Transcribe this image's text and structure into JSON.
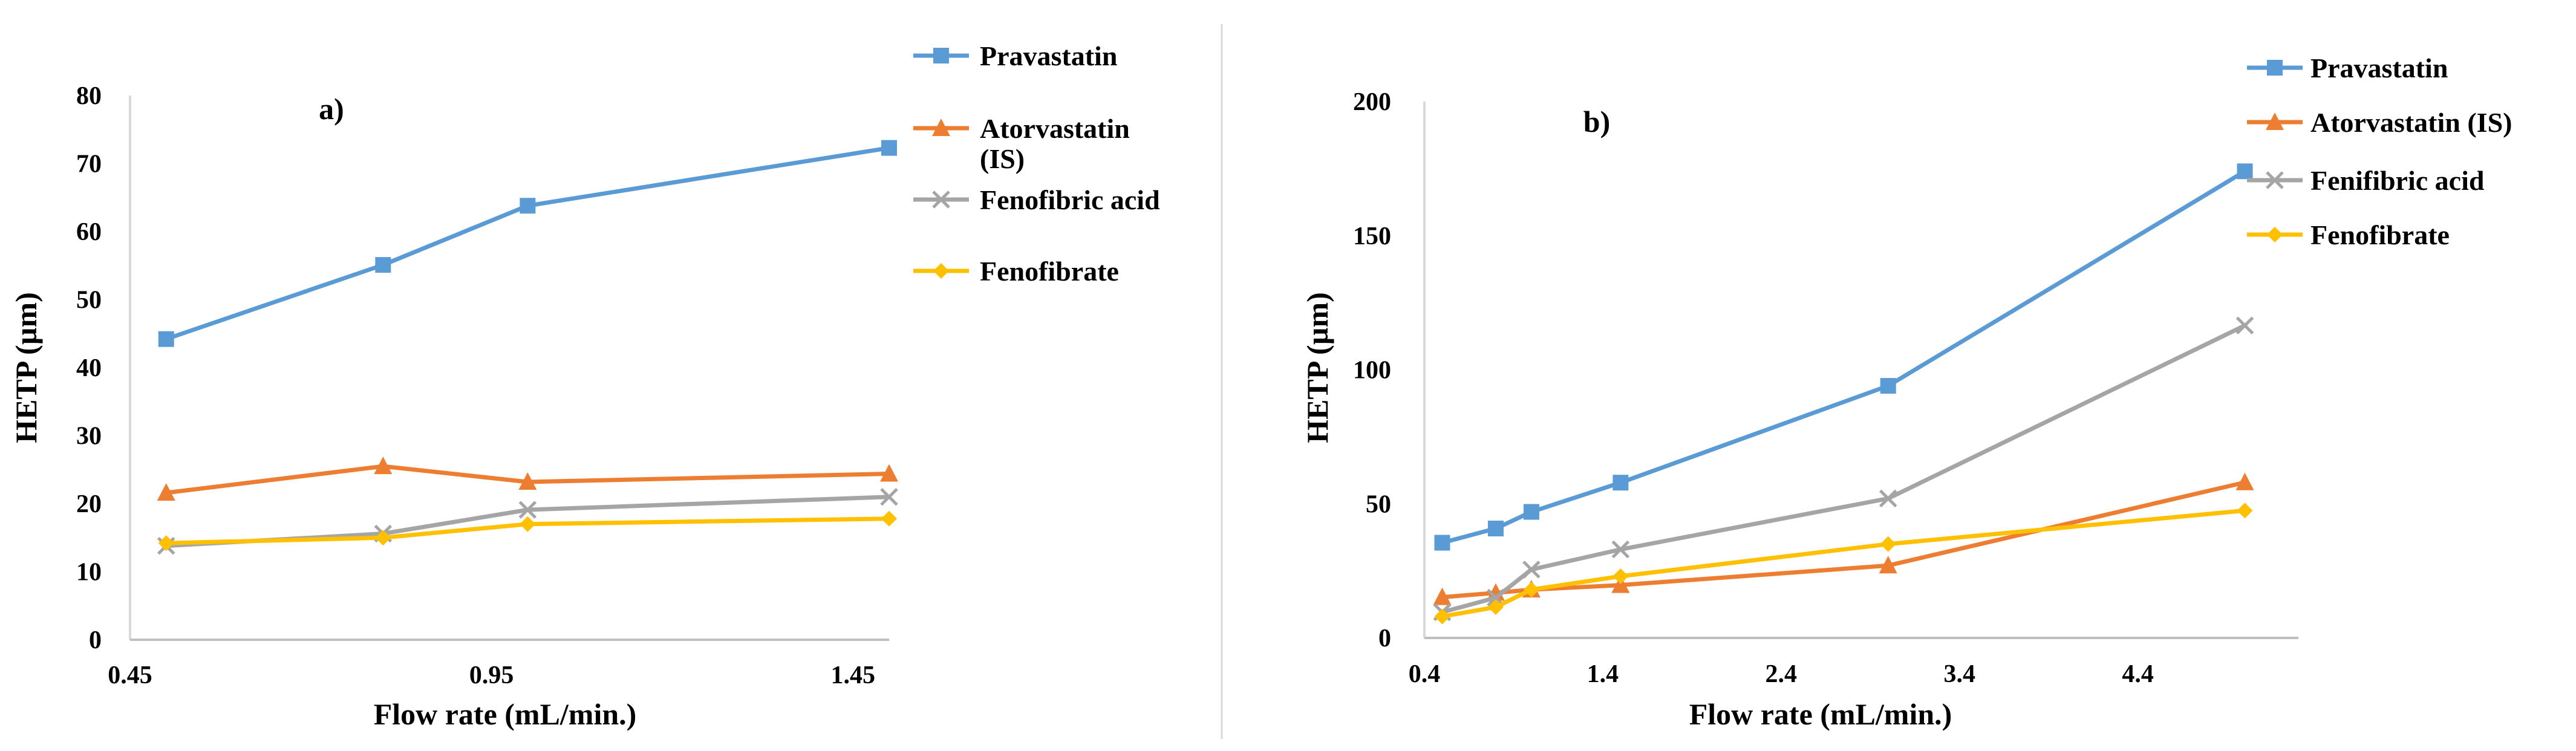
{
  "chart_data": [
    {
      "type": "line",
      "panel_label": "a)",
      "xlabel": "Flow rate (mL/min.)",
      "ylabel": "HETP (µm)",
      "xlim": [
        0.45,
        1.5
      ],
      "ylim": [
        0,
        80
      ],
      "x_ticks": [
        0.45,
        0.95,
        1.45
      ],
      "x_tick_labels": [
        "0.45",
        "0.95",
        "1.45"
      ],
      "y_ticks": [
        0,
        10,
        20,
        30,
        40,
        50,
        60,
        70,
        80
      ],
      "y_tick_labels": [
        "0",
        "10",
        "20",
        "30",
        "40",
        "50",
        "60",
        "70",
        "80"
      ],
      "legend_position": "right",
      "series": [
        {
          "name": "Pravastatin",
          "legend_lines": [
            "Pravastatin"
          ],
          "color": "#5B9BD5",
          "marker": "square",
          "x": [
            0.5,
            0.8,
            1.0,
            1.5
          ],
          "values": [
            44.2,
            55.1,
            63.8,
            72.3
          ]
        },
        {
          "name": "Atorvastatin (IS)",
          "legend_lines": [
            "Atorvastatin",
            "(IS)"
          ],
          "color": "#ED7D31",
          "marker": "triangle",
          "x": [
            0.5,
            0.8,
            1.0,
            1.5
          ],
          "values": [
            21.6,
            25.5,
            23.2,
            24.4
          ]
        },
        {
          "name": "Fenofibric acid",
          "legend_lines": [
            "Fenofibric acid"
          ],
          "color": "#A5A5A5",
          "marker": "x",
          "x": [
            0.5,
            0.8,
            1.0,
            1.5
          ],
          "values": [
            13.8,
            15.6,
            19.1,
            21.0
          ]
        },
        {
          "name": "Fenofibrate",
          "legend_lines": [
            "Fenofibrate"
          ],
          "color": "#FFC000",
          "marker": "diamond",
          "x": [
            0.5,
            0.8,
            1.0,
            1.5
          ],
          "values": [
            14.2,
            15.0,
            17.0,
            17.8
          ]
        }
      ]
    },
    {
      "type": "line",
      "panel_label": "b)",
      "xlabel": "Flow rate (mL/min.)",
      "ylabel": "HETP (µm)",
      "xlim": [
        0.4,
        5.3
      ],
      "ylim": [
        0,
        200
      ],
      "x_ticks": [
        0.4,
        1.4,
        2.4,
        3.4,
        4.4
      ],
      "x_tick_labels": [
        "0.4",
        "1.4",
        "2.4",
        "3.4",
        "4.4"
      ],
      "y_ticks": [
        0,
        50,
        100,
        150,
        200
      ],
      "y_tick_labels": [
        "0",
        "50",
        "100",
        "150",
        "200"
      ],
      "legend_position": "top-right",
      "series": [
        {
          "name": "Pravastatin",
          "legend_lines": [
            "Pravastatin"
          ],
          "color": "#5B9BD5",
          "marker": "square",
          "x": [
            0.5,
            0.8,
            1.0,
            1.5,
            3.0,
            5.0
          ],
          "values": [
            35.5,
            40.8,
            47.0,
            57.9,
            94.0,
            174.0
          ]
        },
        {
          "name": "Atorvastatin (IS)",
          "legend_lines": [
            "Atorvastatin (IS)"
          ],
          "color": "#ED7D31",
          "marker": "triangle",
          "x": [
            0.5,
            0.8,
            1.0,
            1.5,
            3.0,
            5.0
          ],
          "values": [
            15.2,
            16.8,
            18.0,
            19.7,
            27.0,
            58.0
          ]
        },
        {
          "name": "Fenifibric acid",
          "legend_lines": [
            "Fenifibric acid"
          ],
          "color": "#A5A5A5",
          "marker": "x",
          "x": [
            0.5,
            0.8,
            1.0,
            1.5,
            3.0,
            5.0
          ],
          "values": [
            9.6,
            15.0,
            25.5,
            33.0,
            52.0,
            116.5
          ]
        },
        {
          "name": "Fenofibrate",
          "legend_lines": [
            "Fenofibrate"
          ],
          "color": "#FFC000",
          "marker": "diamond",
          "x": [
            0.5,
            0.8,
            1.0,
            1.5,
            3.0,
            5.0
          ],
          "values": [
            8.0,
            11.5,
            18.0,
            23.0,
            35.0,
            47.5
          ]
        }
      ]
    }
  ]
}
